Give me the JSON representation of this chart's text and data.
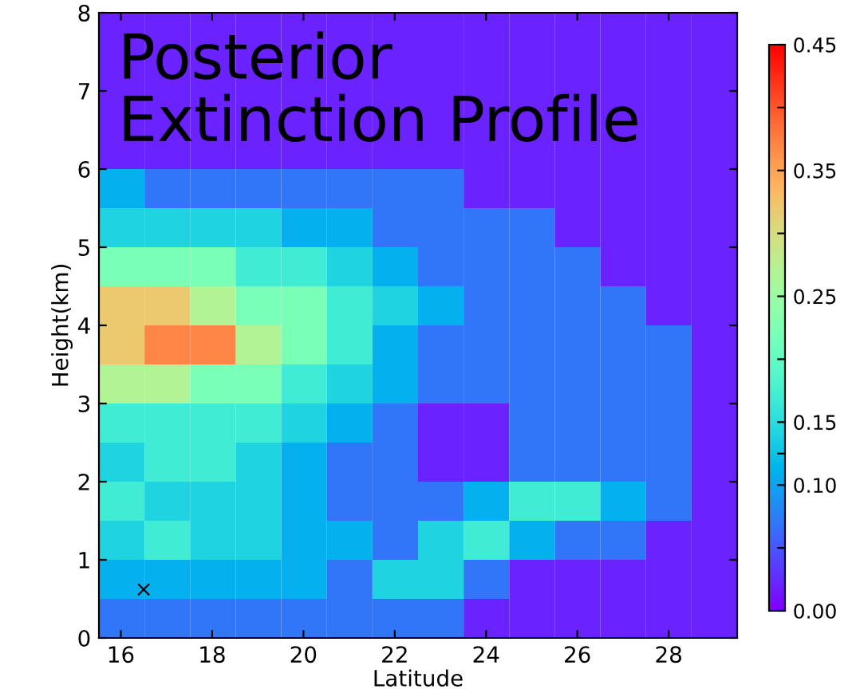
{
  "chart_data": {
    "type": "heatmap",
    "title": "Posterior\nExtinction Profile",
    "xlabel": "Latitude",
    "ylabel": "Height(km)",
    "xlim": [
      15.52,
      29.5
    ],
    "ylim": [
      0,
      8
    ],
    "xticks": [
      16,
      18,
      20,
      22,
      24,
      26,
      28
    ],
    "yticks": [
      0,
      1,
      2,
      3,
      4,
      5,
      6,
      7,
      8
    ],
    "clim": [
      0,
      0.45
    ],
    "cticks": [
      {
        "value": 0,
        "label": "0.00"
      },
      {
        "value": 0.05,
        "label": null
      },
      {
        "value": 0.1,
        "label": "0.10"
      },
      {
        "value": 0.125,
        "label": null
      },
      {
        "value": 0.15,
        "label": "0.15"
      },
      {
        "value": 0.2,
        "label": null
      },
      {
        "value": 0.25,
        "label": "0.25"
      },
      {
        "value": 0.3,
        "label": null
      },
      {
        "value": 0.35,
        "label": "0.35"
      },
      {
        "value": 0.4,
        "label": null
      },
      {
        "value": 0.45,
        "label": "0.45"
      }
    ],
    "cells": [
      [
        0.02,
        0.02,
        0.02,
        0.02,
        0.02,
        0.02,
        0.02,
        0.02,
        0.02,
        0.02,
        0.02,
        0.02,
        0.02,
        0.02
      ],
      [
        0.02,
        0.02,
        0.02,
        0.02,
        0.02,
        0.02,
        0.02,
        0.02,
        0.02,
        0.02,
        0.02,
        0.02,
        0.02,
        0.02
      ],
      [
        0.02,
        0.02,
        0.02,
        0.02,
        0.02,
        0.02,
        0.02,
        0.02,
        0.02,
        0.02,
        0.02,
        0.02,
        0.02,
        0.02
      ],
      [
        0.02,
        0.02,
        0.02,
        0.02,
        0.02,
        0.02,
        0.02,
        0.02,
        0.02,
        0.02,
        0.02,
        0.02,
        0.02,
        0.02
      ],
      [
        0.11,
        0.07,
        0.07,
        0.07,
        0.07,
        0.07,
        0.07,
        0.07,
        0.02,
        0.02,
        0.02,
        0.02,
        0.02,
        0.02
      ],
      [
        0.14,
        0.14,
        0.14,
        0.14,
        0.11,
        0.11,
        0.07,
        0.07,
        0.07,
        0.07,
        0.02,
        0.02,
        0.02,
        0.02
      ],
      [
        0.22,
        0.22,
        0.22,
        0.17,
        0.17,
        0.14,
        0.11,
        0.07,
        0.07,
        0.07,
        0.07,
        0.02,
        0.02,
        0.02
      ],
      [
        0.32,
        0.32,
        0.27,
        0.22,
        0.22,
        0.17,
        0.14,
        0.11,
        0.07,
        0.07,
        0.07,
        0.07,
        0.02,
        0.02
      ],
      [
        0.32,
        0.37,
        0.37,
        0.27,
        0.22,
        0.17,
        0.11,
        0.07,
        0.07,
        0.07,
        0.07,
        0.07,
        0.07,
        0.02
      ],
      [
        0.27,
        0.27,
        0.22,
        0.22,
        0.17,
        0.14,
        0.11,
        0.07,
        0.07,
        0.07,
        0.07,
        0.07,
        0.07,
        0.02
      ],
      [
        0.17,
        0.17,
        0.17,
        0.17,
        0.14,
        0.11,
        0.07,
        0.02,
        0.02,
        0.07,
        0.07,
        0.07,
        0.07,
        0.02
      ],
      [
        0.14,
        0.17,
        0.17,
        0.14,
        0.11,
        0.07,
        0.07,
        0.02,
        0.02,
        0.07,
        0.07,
        0.07,
        0.07,
        0.02
      ],
      [
        0.17,
        0.14,
        0.14,
        0.14,
        0.11,
        0.07,
        0.07,
        0.07,
        0.11,
        0.17,
        0.17,
        0.11,
        0.07,
        0.02
      ],
      [
        0.14,
        0.17,
        0.14,
        0.14,
        0.11,
        0.11,
        0.07,
        0.14,
        0.17,
        0.11,
        0.07,
        0.07,
        0.02,
        0.02
      ],
      [
        0.11,
        0.11,
        0.11,
        0.11,
        0.11,
        0.07,
        0.14,
        0.14,
        0.07,
        0.02,
        0.02,
        0.02,
        0.02,
        0.02
      ],
      [
        0.07,
        0.07,
        0.07,
        0.07,
        0.07,
        0.07,
        0.07,
        0.07,
        0.02,
        0.02,
        0.02,
        0.02,
        0.02,
        0.02
      ]
    ],
    "series": [
      {
        "type": "scatter",
        "x": [
          16.5
        ],
        "values": [
          0.62
        ],
        "color": "#000000",
        "marker": "cross"
      }
    ]
  }
}
